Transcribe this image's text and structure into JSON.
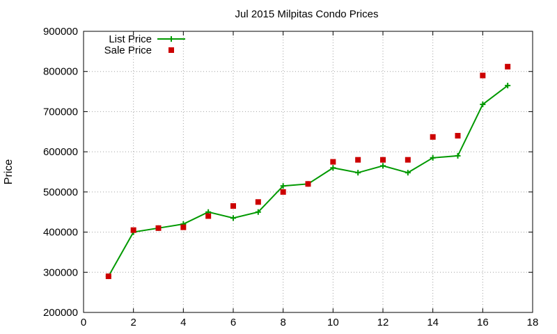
{
  "chart_data": {
    "type": "line",
    "title": "Jul 2015 Milpitas Condo Prices",
    "xlabel": "",
    "ylabel": "Price",
    "xlim": [
      0,
      18
    ],
    "ylim": [
      200000,
      900000
    ],
    "xticks": [
      0,
      2,
      4,
      6,
      8,
      10,
      12,
      14,
      16,
      18
    ],
    "yticks": [
      200000,
      300000,
      400000,
      500000,
      600000,
      700000,
      800000,
      900000
    ],
    "grid": true,
    "legend_position": "top-left",
    "series": [
      {
        "name": "List Price",
        "style": "line-plus",
        "color": "#009900",
        "x": [
          1,
          2,
          3,
          4,
          5,
          6,
          7,
          8,
          9,
          10,
          11,
          12,
          13,
          14,
          15,
          16,
          17
        ],
        "values": [
          290000,
          400000,
          410000,
          420000,
          450000,
          435000,
          450000,
          515000,
          520000,
          560000,
          548000,
          565000,
          548000,
          585000,
          590000,
          718000,
          765000
        ]
      },
      {
        "name": "Sale Price",
        "style": "square-points",
        "color": "#cc0000",
        "x": [
          1,
          2,
          3,
          4,
          5,
          6,
          7,
          8,
          9,
          10,
          11,
          12,
          13,
          14,
          15,
          16,
          17
        ],
        "values": [
          290000,
          405000,
          410000,
          412000,
          440000,
          465000,
          475000,
          500000,
          520000,
          575000,
          580000,
          580000,
          580000,
          637000,
          640000,
          790000,
          812000
        ]
      }
    ]
  }
}
